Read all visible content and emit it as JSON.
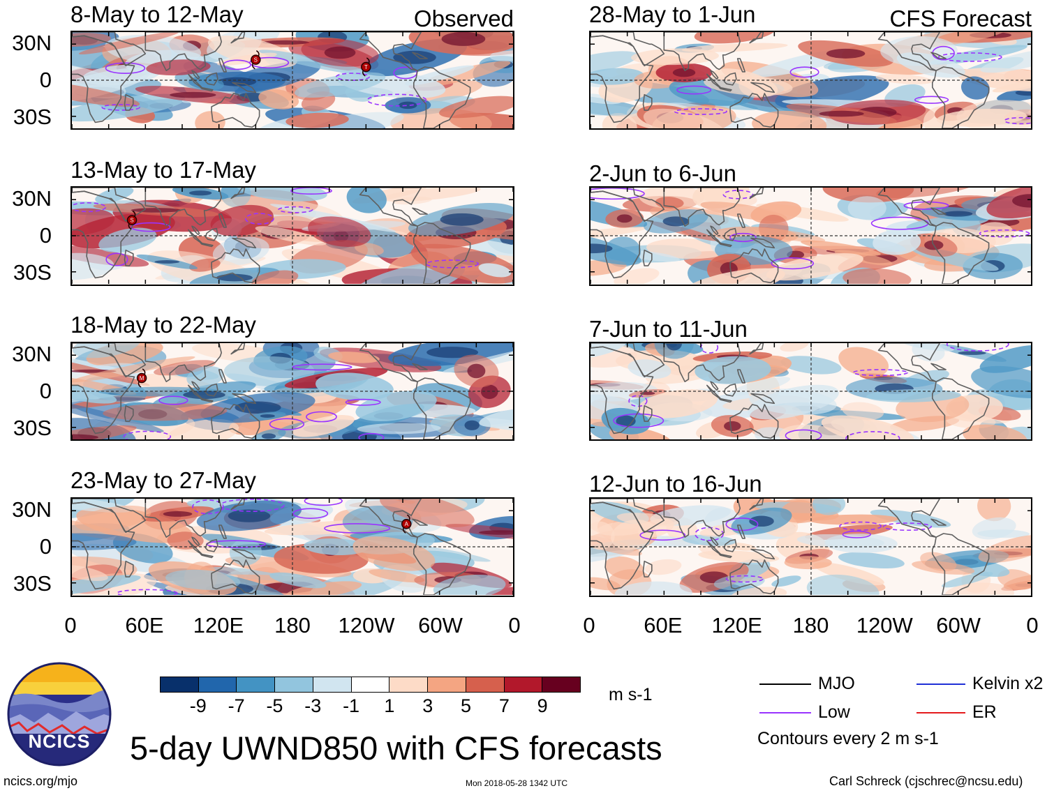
{
  "labels": {
    "observed": "Observed",
    "forecast": "CFS Forecast",
    "lat": [
      "30N",
      "0",
      "30S"
    ],
    "lon": [
      "0",
      "60E",
      "120E",
      "180",
      "120W",
      "60W",
      "0"
    ]
  },
  "observed_panels": [
    {
      "title": "8-May to 12-May"
    },
    {
      "title": "13-May to 17-May"
    },
    {
      "title": "18-May to 22-May"
    },
    {
      "title": "23-May to 27-May"
    }
  ],
  "forecast_panels": [
    {
      "title": "28-May to 1-Jun"
    },
    {
      "title": "2-Jun to 6-Jun"
    },
    {
      "title": "7-Jun to 11-Jun"
    },
    {
      "title": "12-Jun to 16-Jun"
    }
  ],
  "storms": [
    {
      "panel": 0,
      "letter": "S",
      "lon": 150,
      "lat": 17
    },
    {
      "panel": 0,
      "letter": "T",
      "lon": 240,
      "lat": 11
    },
    {
      "panel": 1,
      "letter": "S",
      "lon": 49,
      "lat": 13
    },
    {
      "panel": 2,
      "letter": "M",
      "lon": 57,
      "lat": 11
    },
    {
      "panel": 3,
      "letter": "A",
      "lon": 273,
      "lat": 19
    }
  ],
  "colorbar": {
    "ticks": [
      "-9",
      "-7",
      "-5",
      "-3",
      "-1",
      "1",
      "3",
      "5",
      "7",
      "9"
    ],
    "colors": [
      "#08306b",
      "#2166ac",
      "#4393c3",
      "#92c5de",
      "#d1e5f0",
      "#ffffff",
      "#fddbc7",
      "#f4a582",
      "#d6604d",
      "#b2182b",
      "#67001f"
    ],
    "units": "m s-1"
  },
  "legend": {
    "mjo": {
      "label": "MJO",
      "color": "#000000"
    },
    "low": {
      "label": "Low",
      "color": "#9933ff"
    },
    "kelvin": {
      "label": "Kelvin x2",
      "color": "#1f2fd6"
    },
    "er": {
      "label": "ER",
      "color": "#e41a1c"
    },
    "note": "Contours every 2 m s-1"
  },
  "footer": {
    "logo_text": "NCICS",
    "main_title": "5-day UWND850 with CFS forecasts",
    "url": "ncics.org/mjo",
    "timestamp": "Mon 2018-05-28 1342 UTC",
    "author": "Carl Schreck (cjschrec@ncsu.edu)"
  }
}
